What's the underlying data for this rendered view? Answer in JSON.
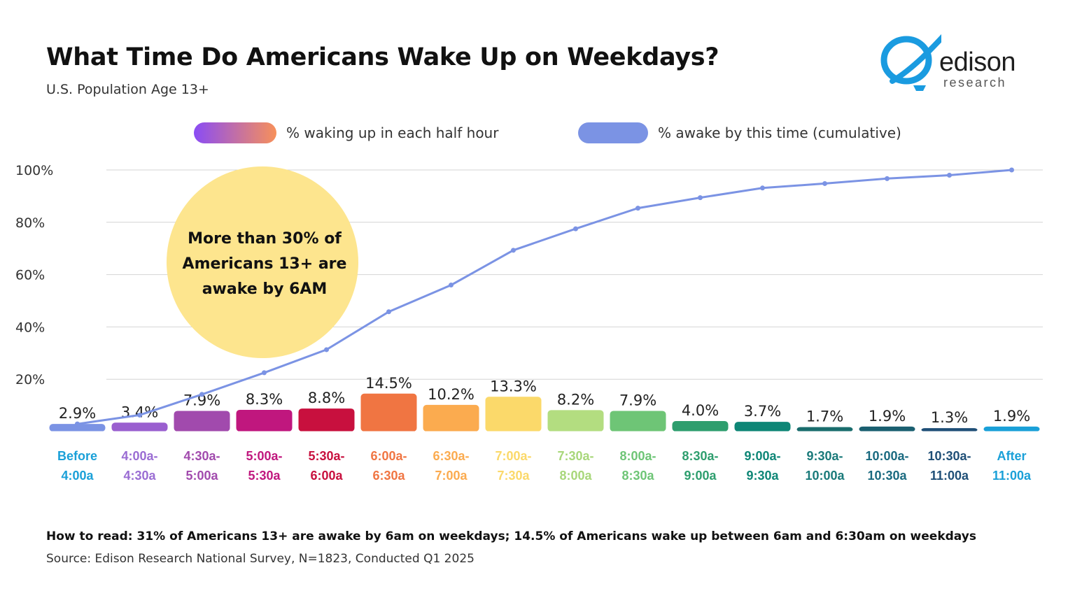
{
  "header": {
    "title": "What Time Do Americans Wake Up on Weekdays?",
    "subtitle": "U.S. Population Age 13+"
  },
  "logo": {
    "word": "edison",
    "sub": "research",
    "color": "#1a9be0"
  },
  "legend": {
    "half_hour": "% waking up in each half hour",
    "cumulative": "% awake by this time (cumulative)"
  },
  "callout": {
    "lines": [
      "More than 30% of",
      "Americans 13+ are",
      "awake by 6AM"
    ],
    "color": "#fde58e"
  },
  "chart_data": {
    "type": "bar",
    "title": "What Time Do Americans Wake Up on Weekdays?",
    "categories": [
      [
        "Before",
        "4:00a"
      ],
      [
        "4:00a-",
        "4:30a"
      ],
      [
        "4:30a-",
        "5:00a"
      ],
      [
        "5:00a-",
        "5:30a"
      ],
      [
        "5:30a-",
        "6:00a"
      ],
      [
        "6:00a-",
        "6:30a"
      ],
      [
        "6:30a-",
        "7:00a"
      ],
      [
        "7:00a-",
        "7:30a"
      ],
      [
        "7:30a-",
        "8:00a"
      ],
      [
        "8:00a-",
        "8:30a"
      ],
      [
        "8:30a-",
        "9:00a"
      ],
      [
        "9:00a-",
        "9:30a"
      ],
      [
        "9:30a-",
        "10:00a"
      ],
      [
        "10:00a-",
        "10:30a"
      ],
      [
        "10:30a-",
        "11:00a"
      ],
      [
        "After",
        "11:00a"
      ]
    ],
    "series": [
      {
        "name": "% waking up in each half hour",
        "type": "bar",
        "values": [
          2.9,
          3.4,
          7.9,
          8.3,
          8.8,
          14.5,
          10.2,
          13.3,
          8.2,
          7.9,
          4.0,
          3.7,
          1.7,
          1.9,
          1.3,
          1.9
        ],
        "value_labels": [
          "2.9%",
          "3.4%",
          "7.9%",
          "8.3%",
          "8.8%",
          "14.5%",
          "10.2%",
          "13.3%",
          "8.2%",
          "7.9%",
          "4.0%",
          "3.7%",
          "1.7%",
          "1.9%",
          "1.3%",
          "1.9%"
        ],
        "colors": [
          "#7b93e4",
          "#9a5fcf",
          "#a14aad",
          "#c0177e",
          "#c8103e",
          "#f07542",
          "#fbab4f",
          "#fbd96a",
          "#b3dd80",
          "#6ec576",
          "#2e9e6e",
          "#0e8676",
          "#1a6d6d",
          "#1a5f70",
          "#1f4f77",
          "#1aa0d8"
        ],
        "label_colors": [
          "#1aa0d8",
          "#9a6cd3",
          "#a14aad",
          "#c0177e",
          "#c8103e",
          "#f07542",
          "#fbab4f",
          "#fbd96a",
          "#a8d77a",
          "#6ec576",
          "#2e9e6e",
          "#0e8676",
          "#1a7a7a",
          "#1a6a80",
          "#1f4f77",
          "#1aa0d8"
        ]
      },
      {
        "name": "% awake by this time (cumulative)",
        "type": "line",
        "color": "#7b93e4",
        "values": [
          2.9,
          6.3,
          14.2,
          22.5,
          31.3,
          45.8,
          56.0,
          69.3,
          77.5,
          85.4,
          89.4,
          93.1,
          94.8,
          96.7,
          98.0,
          100.0
        ]
      }
    ],
    "ylim": [
      0,
      100
    ],
    "yticks": [
      20,
      40,
      60,
      80,
      100
    ],
    "ytick_labels": [
      "20%",
      "40%",
      "60%",
      "80%",
      "100%"
    ],
    "grid": true,
    "legend": "top"
  },
  "footer": {
    "note": "How to read: 31% of Americans 13+ are awake by 6am on weekdays; 14.5% of Americans wake up between 6am and 6:30am on weekdays",
    "source": "Source: Edison Research National Survey, N=1823, Conducted Q1 2025"
  }
}
